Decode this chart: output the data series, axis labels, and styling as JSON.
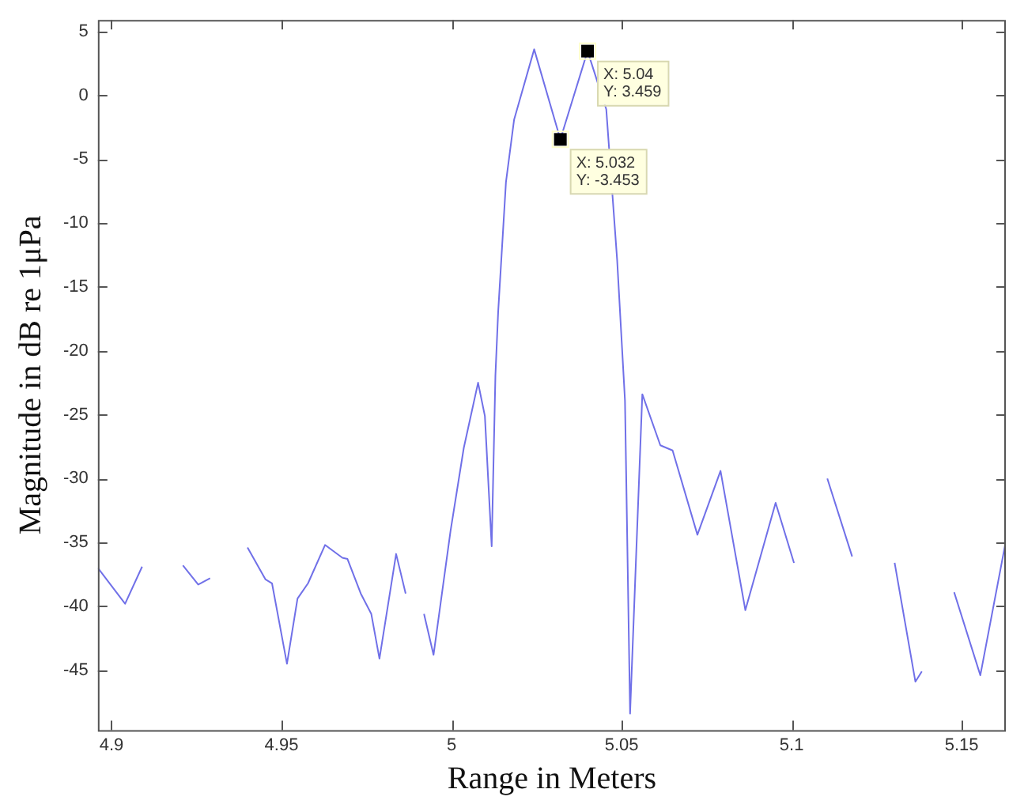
{
  "chart_data": {
    "type": "line",
    "xlabel": "Range in Meters",
    "ylabel": "Magnitude in dB re 1μPa",
    "xlim": [
      4.896,
      5.163
    ],
    "ylim": [
      -49.7,
      5.9
    ],
    "xticks": [
      4.9,
      4.95,
      5,
      5.05,
      5.1,
      5.15
    ],
    "yticks": [
      5,
      0,
      -5,
      -10,
      -15,
      -20,
      -25,
      -30,
      -35,
      -40,
      -45
    ],
    "grid": false,
    "legend": false,
    "marker": "none",
    "line_style": "solid",
    "series": [
      {
        "color": "#7070e8",
        "x": [
          4.896,
          4.904,
          4.909,
          4.915,
          4.921,
          4.9255,
          4.929,
          4.935,
          4.94,
          4.9453,
          4.9472,
          4.9516,
          4.9547,
          4.9578,
          4.9628,
          4.9679,
          4.9694,
          4.9733,
          4.9764,
          4.9788,
          4.9837,
          4.9865,
          4.9889,
          4.9919,
          4.9947,
          4.9997,
          5.0036,
          5.0078,
          5.0098,
          5.0118,
          5.0129,
          5.0137,
          5.016,
          5.0184,
          5.0243,
          5.032,
          5.04,
          5.0455,
          5.0487,
          5.051,
          5.0525,
          5.0561,
          5.0614,
          5.065,
          5.0723,
          5.0791,
          5.0864,
          5.0953,
          5.1007,
          5.1041,
          5.1105,
          5.1178,
          5.1237,
          5.1303,
          5.1364,
          5.1383,
          5.1419,
          5.1478,
          5.1555,
          5.163
        ],
        "values": [
          -37.0,
          -39.8,
          -36.9,
          null,
          -36.8,
          -38.3,
          -37.8,
          null,
          -35.4,
          -37.9,
          -38.2,
          -44.5,
          -39.4,
          -38.2,
          -35.2,
          -36.2,
          -36.3,
          -39.0,
          -40.6,
          -44.1,
          -35.9,
          -39.0,
          null,
          -40.6,
          -43.8,
          -34.1,
          -27.6,
          -22.5,
          -25.1,
          -35.3,
          -21.9,
          -17.0,
          -6.8,
          -1.9,
          3.6,
          -3.453,
          3.459,
          -1.1,
          -12.9,
          -23.9,
          -48.4,
          -23.4,
          -27.4,
          -27.8,
          -34.4,
          -29.4,
          -40.3,
          -31.9,
          -36.6,
          null,
          -30.0,
          -36.1,
          null,
          -36.6,
          -45.9,
          -45.1,
          null,
          -38.9,
          -45.4,
          -34.9
        ]
      }
    ],
    "annotations": [
      {
        "text": "X: 5.032\nY: -3.453",
        "x": 5.032,
        "y": -3.453
      },
      {
        "text": "X: 5.04\nY: 3.459",
        "x": 5.04,
        "y": 3.459
      }
    ]
  }
}
